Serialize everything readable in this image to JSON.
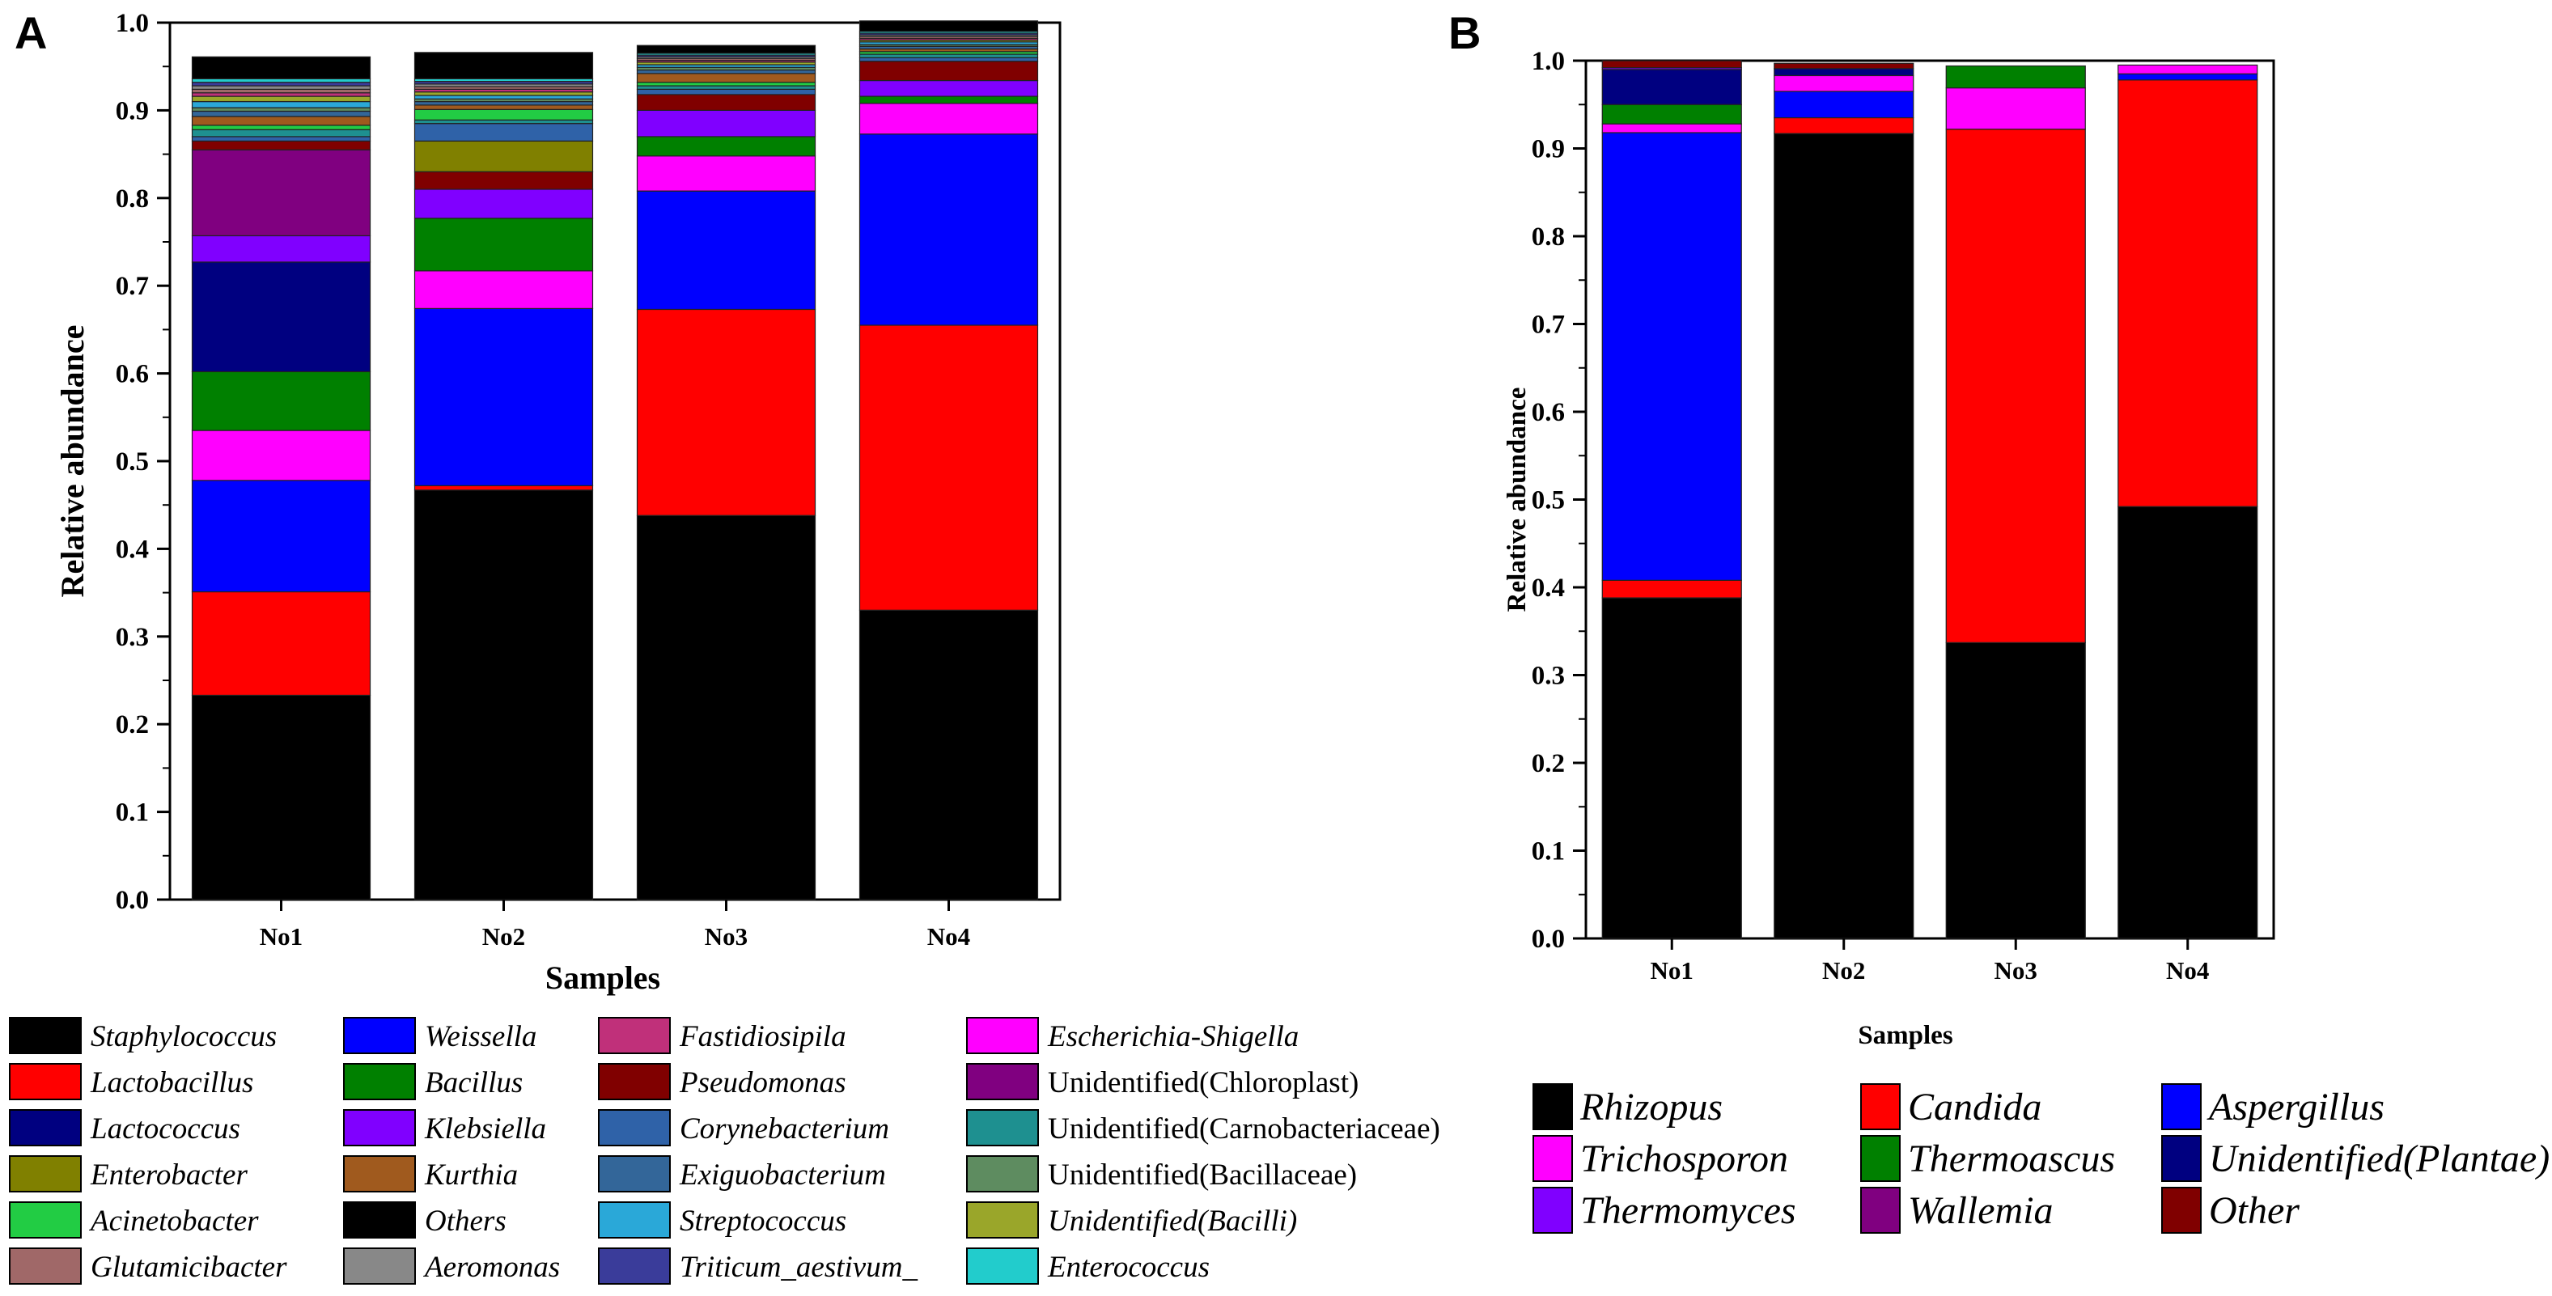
{
  "panels": {
    "a": {
      "label": "A"
    },
    "b": {
      "label": "B"
    }
  },
  "chart_data": [
    {
      "type": "bar",
      "stacked": true,
      "panel": "A",
      "title": "",
      "xlabel": "Samples",
      "ylabel": "Relative abundance",
      "ylim": [
        0,
        1.0
      ],
      "yticks": [
        "0.0",
        "0.1",
        "0.2",
        "0.3",
        "0.4",
        "0.5",
        "0.6",
        "0.7",
        "0.8",
        "0.9",
        "1.0"
      ],
      "categories": [
        "No1",
        "No2",
        "No3",
        "No4"
      ],
      "series": [
        {
          "name": "Staphylococcus",
          "italic": true,
          "color": "#000000",
          "values": [
            0.233,
            0.467,
            0.438,
            0.33
          ]
        },
        {
          "name": "Lactobacillus",
          "italic": true,
          "color": "#ff0000",
          "values": [
            0.118,
            0.005,
            0.235,
            0.325
          ]
        },
        {
          "name": "Weissella",
          "italic": true,
          "color": "#0000ff",
          "values": [
            0.127,
            0.202,
            0.135,
            0.218
          ]
        },
        {
          "name": "Escherichia-Shigella",
          "italic": true,
          "color": "#ff00ff",
          "values": [
            0.057,
            0.043,
            0.04,
            0.035
          ]
        },
        {
          "name": "Bacillus",
          "italic": true,
          "color": "#008000",
          "values": [
            0.067,
            0.06,
            0.022,
            0.008
          ]
        },
        {
          "name": "Lactococcus",
          "italic": true,
          "color": "#000080",
          "values": [
            0.125,
            0.0,
            0.0,
            0.0
          ]
        },
        {
          "name": "Klebsiella",
          "italic": true,
          "color": "#8000ff",
          "values": [
            0.03,
            0.033,
            0.03,
            0.018
          ]
        },
        {
          "name": "Unidentified(Chloroplast)",
          "italic": false,
          "color": "#800080",
          "values": [
            0.098,
            0.0,
            0.0,
            0.0
          ]
        },
        {
          "name": "Pseudomonas",
          "italic": true,
          "color": "#800000",
          "values": [
            0.01,
            0.02,
            0.018,
            0.022
          ]
        },
        {
          "name": "Enterobacter",
          "italic": true,
          "color": "#808000",
          "values": [
            0.0,
            0.035,
            0.0,
            0.0
          ]
        },
        {
          "name": "Corynebacterium",
          "italic": true,
          "color": "#2f62a8",
          "values": [
            0.005,
            0.02,
            0.006,
            0.004
          ]
        },
        {
          "name": "Unidentified(Carnobacteriaceae)",
          "italic": false,
          "color": "#1e9090",
          "values": [
            0.008,
            0.004,
            0.004,
            0.004
          ]
        },
        {
          "name": "Acinetobacter",
          "italic": true,
          "color": "#22cc44",
          "values": [
            0.005,
            0.012,
            0.004,
            0.003
          ]
        },
        {
          "name": "Kurthia",
          "italic": true,
          "color": "#a05a1e",
          "values": [
            0.01,
            0.005,
            0.01,
            0.003
          ]
        },
        {
          "name": "Exiguobacterium",
          "italic": true,
          "color": "#336699",
          "values": [
            0.006,
            0.004,
            0.004,
            0.003
          ]
        },
        {
          "name": "Unidentified(Bacillaceae)",
          "italic": false,
          "color": "#5e8c60",
          "values": [
            0.004,
            0.003,
            0.003,
            0.002
          ]
        },
        {
          "name": "Streptococcus",
          "italic": true,
          "color": "#2aa8d8",
          "values": [
            0.007,
            0.004,
            0.003,
            0.003
          ]
        },
        {
          "name": "Unidentified(Bacilli)",
          "italic": true,
          "color": "#9aa62a",
          "values": [
            0.006,
            0.004,
            0.003,
            0.002
          ]
        },
        {
          "name": "Fastidiosipila",
          "italic": true,
          "color": "#c0307a",
          "values": [
            0.004,
            0.003,
            0.002,
            0.002
          ]
        },
        {
          "name": "Glutamicibacter",
          "italic": true,
          "color": "#a06868",
          "values": [
            0.004,
            0.003,
            0.002,
            0.002
          ]
        },
        {
          "name": "Aeromonas",
          "italic": true,
          "color": "#888888",
          "values": [
            0.004,
            0.003,
            0.002,
            0.002
          ]
        },
        {
          "name": "Triticum_aestivum_",
          "italic": true,
          "color": "#3a3c9a",
          "values": [
            0.004,
            0.003,
            0.002,
            0.002
          ]
        },
        {
          "name": "Enterococcus",
          "italic": true,
          "color": "#22cccc",
          "values": [
            0.004,
            0.003,
            0.002,
            0.002
          ]
        },
        {
          "name": "Others",
          "italic": true,
          "color": "#000000",
          "values": [
            0.025,
            0.03,
            0.009,
            0.012
          ]
        }
      ],
      "legend": [
        [
          "Staphylococcus",
          "Weissella",
          "Fastidiosipila",
          "Escherichia-Shigella"
        ],
        [
          "Lactobacillus",
          "Bacillus",
          "Pseudomonas",
          "Unidentified(Chloroplast)"
        ],
        [
          "Lactococcus",
          "Klebsiella",
          "Corynebacterium",
          "Unidentified(Carnobacteriaceae)"
        ],
        [
          "Enterobacter",
          "Kurthia",
          "Exiguobacterium",
          "Unidentified(Bacillaceae)"
        ],
        [
          "Acinetobacter",
          "Others",
          "Streptococcus",
          "Unidentified(Bacilli)"
        ],
        [
          "Glutamicibacter",
          "Aeromonas",
          "Triticum_aestivum_",
          "Enterococcus"
        ]
      ],
      "legend_placement": "bottom"
    },
    {
      "type": "bar",
      "stacked": true,
      "panel": "B",
      "title": "",
      "xlabel": "Samples",
      "ylabel": "Relative abundance",
      "ylim": [
        0,
        1.0
      ],
      "yticks": [
        "0.0",
        "0.1",
        "0.2",
        "0.3",
        "0.4",
        "0.5",
        "0.6",
        "0.7",
        "0.8",
        "0.9",
        "1.0"
      ],
      "categories": [
        "No1",
        "No2",
        "No3",
        "No4"
      ],
      "series": [
        {
          "name": "Rhizopus",
          "italic": true,
          "color": "#000000",
          "values": [
            0.388,
            0.917,
            0.337,
            0.492
          ]
        },
        {
          "name": "Candida",
          "italic": true,
          "color": "#ff0000",
          "values": [
            0.02,
            0.018,
            0.585,
            0.486
          ]
        },
        {
          "name": "Aspergillus",
          "italic": true,
          "color": "#0000ff",
          "values": [
            0.51,
            0.03,
            0.0,
            0.007
          ]
        },
        {
          "name": "Trichosporon",
          "italic": true,
          "color": "#ff00ff",
          "values": [
            0.01,
            0.018,
            0.047,
            0.01
          ]
        },
        {
          "name": "Thermoascus",
          "italic": true,
          "color": "#008000",
          "values": [
            0.022,
            0.0,
            0.025,
            0.0
          ]
        },
        {
          "name": "Unidentified(Plantae)",
          "italic": true,
          "color": "#000080",
          "values": [
            0.04,
            0.008,
            0.0,
            0.0
          ]
        },
        {
          "name": "Thermomyces",
          "italic": true,
          "color": "#8000ff",
          "values": [
            0.002,
            0.0,
            0.0,
            0.0
          ]
        },
        {
          "name": "Wallemia",
          "italic": true,
          "color": "#800080",
          "values": [
            0.0,
            0.0,
            0.0,
            0.0
          ]
        },
        {
          "name": "Other",
          "italic": true,
          "color": "#800000",
          "values": [
            0.008,
            0.006,
            0.0,
            0.0
          ]
        }
      ],
      "legend": [
        [
          "Rhizopus",
          "Candida",
          "Aspergillus"
        ],
        [
          "Trichosporon",
          "Thermoascus",
          "Unidentified(Plantae)"
        ],
        [
          "Thermomyces",
          "Wallemia",
          "Other"
        ]
      ],
      "legend_placement": "bottom"
    }
  ]
}
